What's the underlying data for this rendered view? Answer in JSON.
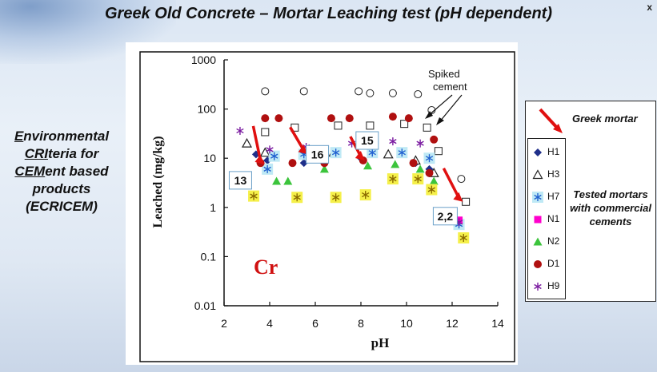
{
  "title": "Greek Old Concrete – Mortar Leaching test (pH dependent)",
  "corner_mark": "x",
  "left_block": {
    "line1_ul": "E",
    "line1_rest": "nvironmental",
    "line2_ul": "CRI",
    "line2_rest": "teria for",
    "line3_ul": "CEM",
    "line3_rest": "ent based",
    "line4": "products",
    "line5": "(ECRICEM)"
  },
  "legend": {
    "greek_label": "Greek mortar",
    "tested_label": "Tested mortars with commercial cements",
    "items": [
      {
        "name": "H1",
        "marker": "diamond",
        "color": "#1f2f8a"
      },
      {
        "name": "H3",
        "marker": "triangle-open",
        "color": "#c9b400"
      },
      {
        "name": "H7",
        "marker": "asterisk",
        "color": "#2060d0"
      },
      {
        "name": "N1",
        "marker": "square",
        "color": "#ff00cc"
      },
      {
        "name": "N2",
        "marker": "triangle",
        "color": "#3cc43c"
      },
      {
        "name": "D1",
        "marker": "circle",
        "color": "#b01010"
      },
      {
        "name": "H9",
        "marker": "asterisk",
        "color": "#7a1aa0"
      }
    ]
  },
  "chart_data": {
    "type": "scatter",
    "xlabel": "pH",
    "ylabel": "Leached (mg/kg)",
    "xlim": [
      2,
      14
    ],
    "ylim": [
      0.01,
      1000
    ],
    "yscale": "log",
    "x_ticks": [
      2,
      4,
      6,
      8,
      10,
      12,
      14
    ],
    "y_ticks": [
      0.01,
      0.1,
      1,
      10,
      100,
      1000
    ],
    "y_tick_labels": [
      "0.01",
      "0.1",
      "1",
      "10",
      "100",
      "1000"
    ],
    "element_label": "Cr",
    "spiked_label": "Spiked cement",
    "series": [
      {
        "name": "Spiked cement",
        "marker": "circle-open",
        "color": "#333333",
        "points": [
          [
            5.5,
            230
          ],
          [
            7.9,
            230
          ],
          [
            8.4,
            210
          ],
          [
            9.4,
            210
          ],
          [
            10.5,
            200
          ],
          [
            11.1,
            95
          ],
          [
            12.4,
            3.8
          ],
          [
            3.8,
            230
          ]
        ]
      },
      {
        "name": "Spiked cement squares",
        "marker": "square-open",
        "color": "#333333",
        "points": [
          [
            3.8,
            34
          ],
          [
            5.1,
            42
          ],
          [
            7.0,
            46
          ],
          [
            8.4,
            46
          ],
          [
            9.9,
            50
          ],
          [
            10.9,
            42
          ],
          [
            11.4,
            14
          ],
          [
            12.6,
            1.3
          ]
        ]
      },
      {
        "name": "H1",
        "marker": "diamond",
        "color": "#1f2f8a",
        "points": [
          [
            3.4,
            12
          ],
          [
            3.9,
            9
          ],
          [
            5.5,
            8
          ],
          [
            8.0,
            10
          ],
          [
            10.4,
            8
          ],
          [
            11.0,
            6
          ]
        ]
      },
      {
        "name": "H3",
        "marker": "triangle-open",
        "color": "#c9b400",
        "points": [
          [
            3.0,
            20
          ],
          [
            3.8,
            13
          ],
          [
            6.8,
            13
          ],
          [
            9.2,
            12
          ],
          [
            10.4,
            9
          ],
          [
            11.2,
            5
          ]
        ]
      },
      {
        "name": "H7",
        "marker": "asterisk",
        "color": "#2060d0",
        "points": [
          [
            3.9,
            6
          ],
          [
            4.2,
            11
          ],
          [
            5.5,
            12
          ],
          [
            6.9,
            13
          ],
          [
            8.5,
            13
          ],
          [
            9.8,
            13
          ],
          [
            11.0,
            10
          ],
          [
            12.3,
            0.45
          ]
        ]
      },
      {
        "name": "N1",
        "marker": "square",
        "color": "#ff00cc",
        "points": [
          [
            12.3,
            0.55
          ]
        ]
      },
      {
        "name": "N2",
        "marker": "triangle",
        "color": "#3cc43c",
        "points": [
          [
            4.3,
            3.4
          ],
          [
            4.8,
            3.4
          ],
          [
            6.4,
            6
          ],
          [
            8.3,
            7
          ],
          [
            9.5,
            7.5
          ],
          [
            10.6,
            6
          ],
          [
            11.2,
            3.4
          ]
        ]
      },
      {
        "name": "D1",
        "marker": "circle",
        "color": "#b01010",
        "points": [
          [
            3.8,
            65
          ],
          [
            4.4,
            65
          ],
          [
            6.7,
            65
          ],
          [
            7.5,
            65
          ],
          [
            9.4,
            70
          ],
          [
            10.1,
            65
          ],
          [
            11.2,
            24
          ],
          [
            3.6,
            8
          ],
          [
            5.0,
            8
          ],
          [
            6.4,
            8
          ],
          [
            8.1,
            9
          ],
          [
            10.3,
            8
          ],
          [
            11.0,
            5
          ]
        ]
      },
      {
        "name": "H9",
        "marker": "asterisk",
        "color": "#7a1aa0",
        "points": [
          [
            2.7,
            36
          ],
          [
            4.0,
            15
          ],
          [
            5.6,
            17
          ],
          [
            7.6,
            20
          ],
          [
            8.5,
            20
          ],
          [
            9.4,
            22
          ],
          [
            10.6,
            20
          ],
          [
            12.3,
            0.5
          ]
        ]
      },
      {
        "name": "Greek mortar",
        "marker": "asterisk-hl",
        "color": "#8a6a00",
        "points": [
          [
            3.3,
            1.7
          ],
          [
            5.2,
            1.6
          ],
          [
            6.9,
            1.6
          ],
          [
            8.2,
            1.8
          ],
          [
            9.4,
            3.8
          ],
          [
            10.5,
            3.8
          ],
          [
            11.1,
            2.3
          ],
          [
            12.5,
            0.24
          ]
        ]
      }
    ],
    "annotations": [
      {
        "text": "13",
        "value_x": 3.7,
        "value_y": 7.5
      },
      {
        "text": "16",
        "value_x": 5.6,
        "value_y": 12
      },
      {
        "text": "15",
        "value_x": 8.1,
        "value_y": 9
      },
      {
        "text": "2,2",
        "value_x": 12.4,
        "value_y": 1.3
      }
    ]
  }
}
